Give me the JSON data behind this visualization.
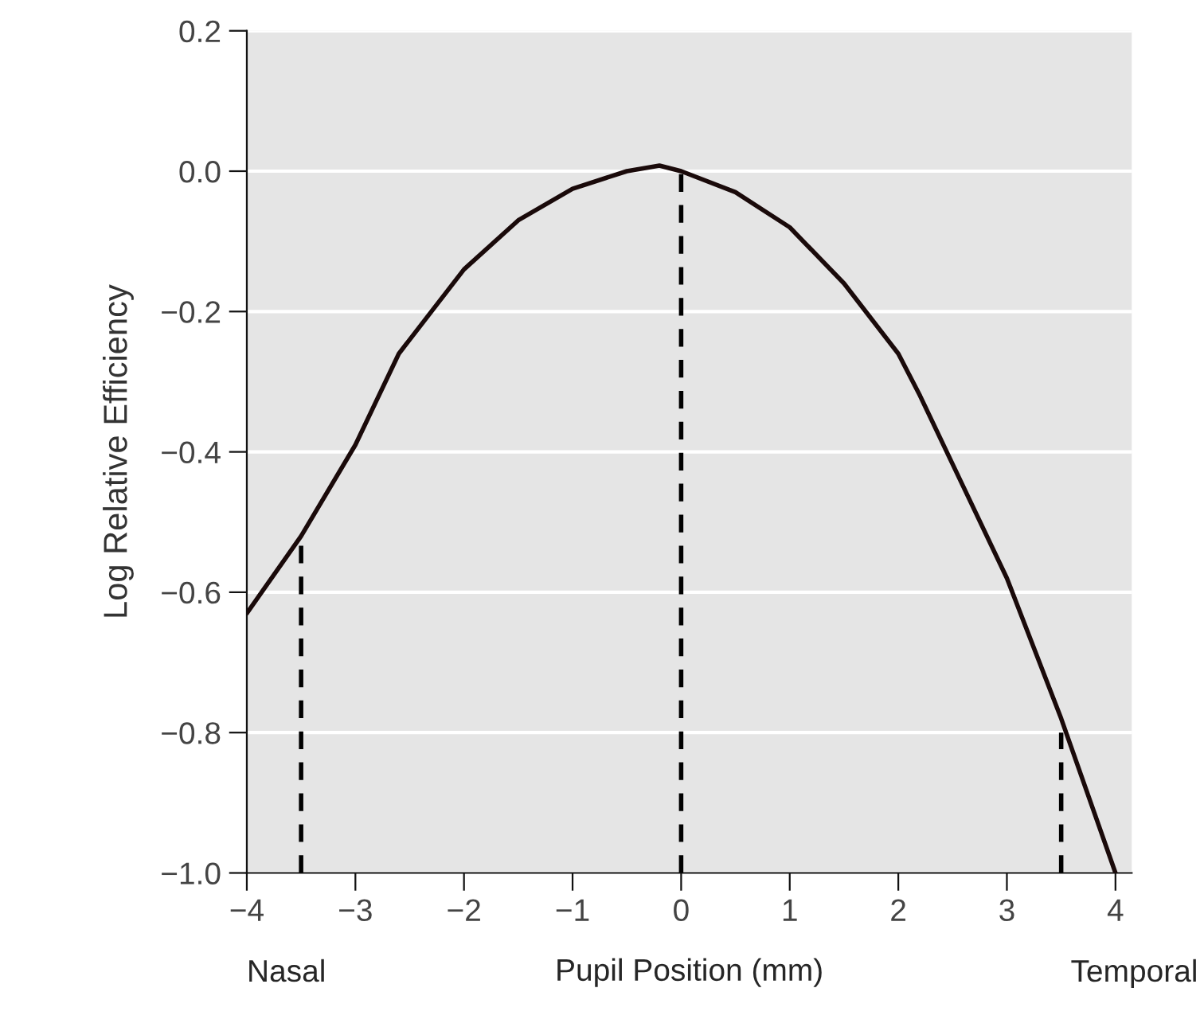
{
  "chart_data": {
    "type": "line",
    "xlabel": "Pupil Position (mm)",
    "ylabel": "Log Relative Efficiency",
    "x": [
      -4,
      -3.5,
      -3,
      -2.6,
      -2,
      -1.5,
      -1,
      -0.5,
      -0.2,
      0,
      0.5,
      1,
      1.5,
      2,
      2.2,
      2.6,
      3,
      3.5,
      4
    ],
    "series": [
      {
        "color": "#1a0a0a",
        "values": [
          -0.63,
          -0.52,
          -0.39,
          -0.26,
          -0.14,
          -0.07,
          -0.025,
          0.0,
          0.008,
          0.0,
          -0.03,
          -0.08,
          -0.16,
          -0.26,
          -0.32,
          -0.45,
          -0.58,
          -0.78,
          -1.0
        ]
      },
      {
        "type": "line",
        "line_style": "dashed",
        "color": "#000000",
        "x": [
          -3.5,
          -3.5
        ],
        "values": [
          -1.0,
          -0.52
        ]
      },
      {
        "type": "line",
        "line_style": "dashed",
        "color": "#000000",
        "x": [
          0,
          0
        ],
        "values": [
          -1.0,
          0.0
        ]
      },
      {
        "type": "line",
        "line_style": "dashed",
        "color": "#000000",
        "x": [
          3.5,
          3.5
        ],
        "values": [
          -1.0,
          -0.8
        ]
      }
    ],
    "xlim": [
      -4,
      4.15
    ],
    "xticks": [
      {
        "value": -4,
        "label": "−4"
      },
      {
        "value": -3,
        "label": "−3"
      },
      {
        "value": -2,
        "label": "−2"
      },
      {
        "value": -1,
        "label": "−1"
      },
      0,
      1,
      2,
      3,
      4
    ],
    "ylim": [
      -1.0,
      0.2
    ],
    "yticks": [
      {
        "value": -1.0,
        "label": "−1.0"
      },
      {
        "value": -0.8,
        "label": "−0.8"
      },
      {
        "value": -0.6,
        "label": "−0.6"
      },
      {
        "value": -0.4,
        "label": "−0.4"
      },
      {
        "value": -0.2,
        "label": "−0.2"
      },
      {
        "value": 0.0,
        "label": "0.0"
      },
      {
        "value": 0.2,
        "label": "0.2"
      }
    ],
    "grid": "y",
    "line_style": "solid",
    "annotations": [
      "Nasal",
      "Temporal"
    ]
  }
}
